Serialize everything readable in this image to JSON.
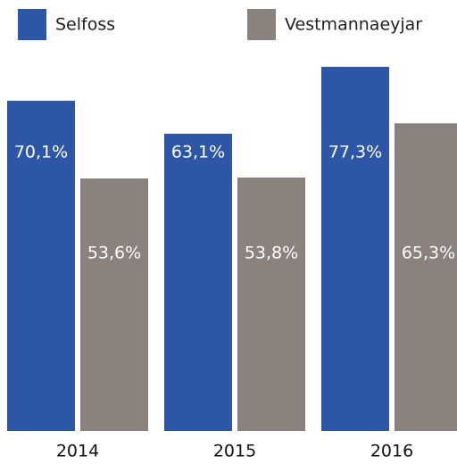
{
  "chart_data": {
    "type": "bar",
    "categories": [
      "2014",
      "2015",
      "2016"
    ],
    "series": [
      {
        "name": "Selfoss",
        "color": "#2d56a6",
        "values": [
          70.1,
          63.1,
          77.3
        ],
        "value_labels": [
          "70,1%",
          "63,1%",
          "77,3%"
        ]
      },
      {
        "name": "Vestmannaeyjar",
        "color": "#8a827c",
        "values": [
          53.6,
          53.8,
          65.3
        ],
        "value_labels": [
          "53,6%",
          "53,8%",
          "65,3%"
        ]
      }
    ]
  }
}
